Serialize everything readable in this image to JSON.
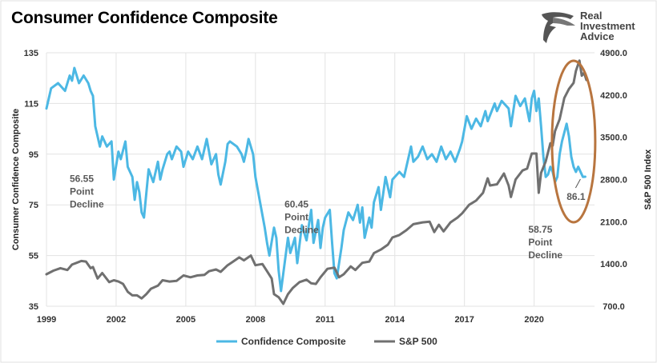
{
  "brand": {
    "line1": "Real",
    "line2": "Investment",
    "line3": "Advice",
    "logo": "eagle-head-logo"
  },
  "colors": {
    "confidence": "#4cb8e4",
    "sp500": "#707070",
    "grid": "#e3e3e3",
    "highlight_ellipse": "#b8753f",
    "annotation_text": "#595959"
  },
  "chart_data": {
    "type": "line",
    "title": "Consumer Confidence Composite",
    "ylabel": "Consumer Confidence Composite",
    "y2label": "S&P 500 Index",
    "xlim": [
      1999,
      2022.6
    ],
    "ylim": [
      35,
      135
    ],
    "y2lim": [
      700,
      4900
    ],
    "x_ticks": [
      "1999",
      "2002",
      "2005",
      "2008",
      "2011",
      "2014",
      "2017",
      "2020"
    ],
    "y_ticks": [
      "35",
      "55",
      "75",
      "95",
      "115",
      "135"
    ],
    "y2_ticks": [
      "700.0",
      "1400.0",
      "2100.0",
      "2800.0",
      "3500.0",
      "4200.0",
      "4900.0"
    ],
    "grid": true,
    "legend_position": "bottom",
    "series": [
      {
        "name": "Confidence Composite",
        "axis": "left",
        "points": [
          [
            1999.0,
            113
          ],
          [
            1999.2,
            121
          ],
          [
            1999.5,
            123
          ],
          [
            1999.8,
            120
          ],
          [
            2000.0,
            126
          ],
          [
            2000.1,
            124
          ],
          [
            2000.2,
            129
          ],
          [
            2000.4,
            123
          ],
          [
            2000.6,
            126
          ],
          [
            2000.8,
            123
          ],
          [
            2000.9,
            120
          ],
          [
            2001.0,
            118
          ],
          [
            2001.1,
            106
          ],
          [
            2001.3,
            98
          ],
          [
            2001.4,
            102
          ],
          [
            2001.6,
            98
          ],
          [
            2001.8,
            100
          ],
          [
            2001.9,
            85
          ],
          [
            2002.1,
            96
          ],
          [
            2002.2,
            93
          ],
          [
            2002.4,
            100
          ],
          [
            2002.5,
            90
          ],
          [
            2002.7,
            86
          ],
          [
            2002.8,
            77
          ],
          [
            2002.9,
            84
          ],
          [
            2003.0,
            80
          ],
          [
            2003.1,
            72
          ],
          [
            2003.2,
            70
          ],
          [
            2003.4,
            89
          ],
          [
            2003.6,
            84
          ],
          [
            2003.8,
            92
          ],
          [
            2003.9,
            85
          ],
          [
            2004.0,
            89
          ],
          [
            2004.2,
            95
          ],
          [
            2004.3,
            96
          ],
          [
            2004.4,
            93
          ],
          [
            2004.6,
            98
          ],
          [
            2004.8,
            96
          ],
          [
            2004.9,
            90
          ],
          [
            2005.1,
            96
          ],
          [
            2005.3,
            93
          ],
          [
            2005.5,
            98
          ],
          [
            2005.7,
            93
          ],
          [
            2005.9,
            101
          ],
          [
            2006.1,
            91
          ],
          [
            2006.3,
            95
          ],
          [
            2006.4,
            87
          ],
          [
            2006.5,
            83
          ],
          [
            2006.7,
            92
          ],
          [
            2006.8,
            99
          ],
          [
            2006.9,
            100
          ],
          [
            2007.2,
            98
          ],
          [
            2007.4,
            95
          ],
          [
            2007.5,
            92
          ],
          [
            2007.6,
            96
          ],
          [
            2007.7,
            101
          ],
          [
            2007.9,
            95
          ],
          [
            2008.0,
            86
          ],
          [
            2008.2,
            76
          ],
          [
            2008.4,
            66
          ],
          [
            2008.5,
            60
          ],
          [
            2008.6,
            55
          ],
          [
            2008.8,
            66
          ],
          [
            2008.9,
            62
          ],
          [
            2009.0,
            49
          ],
          [
            2009.1,
            41
          ],
          [
            2009.2,
            48
          ],
          [
            2009.4,
            62
          ],
          [
            2009.5,
            56
          ],
          [
            2009.7,
            62
          ],
          [
            2009.8,
            52
          ],
          [
            2010.0,
            67
          ],
          [
            2010.2,
            61
          ],
          [
            2010.4,
            73
          ],
          [
            2010.5,
            60
          ],
          [
            2010.7,
            69
          ],
          [
            2010.8,
            58
          ],
          [
            2010.9,
            66
          ],
          [
            2011.0,
            70
          ],
          [
            2011.2,
            73
          ],
          [
            2011.3,
            60
          ],
          [
            2011.4,
            48
          ],
          [
            2011.5,
            46
          ],
          [
            2011.7,
            58
          ],
          [
            2011.8,
            65
          ],
          [
            2012.0,
            72
          ],
          [
            2012.2,
            69
          ],
          [
            2012.4,
            75
          ],
          [
            2012.5,
            68
          ],
          [
            2012.6,
            74
          ],
          [
            2012.7,
            62
          ],
          [
            2012.9,
            70
          ],
          [
            2013.0,
            66
          ],
          [
            2013.1,
            76
          ],
          [
            2013.3,
            82
          ],
          [
            2013.4,
            73
          ],
          [
            2013.6,
            86
          ],
          [
            2013.8,
            78
          ],
          [
            2013.9,
            85
          ],
          [
            2014.2,
            88
          ],
          [
            2014.4,
            86
          ],
          [
            2014.7,
            98
          ],
          [
            2014.8,
            92
          ],
          [
            2015.0,
            94
          ],
          [
            2015.2,
            98
          ],
          [
            2015.4,
            93
          ],
          [
            2015.6,
            95
          ],
          [
            2015.8,
            92
          ],
          [
            2016.0,
            98
          ],
          [
            2016.2,
            93
          ],
          [
            2016.4,
            96
          ],
          [
            2016.6,
            92
          ],
          [
            2016.8,
            97
          ],
          [
            2016.9,
            100
          ],
          [
            2017.1,
            110
          ],
          [
            2017.3,
            105
          ],
          [
            2017.5,
            109
          ],
          [
            2017.7,
            106
          ],
          [
            2017.9,
            112
          ],
          [
            2018.0,
            108
          ],
          [
            2018.3,
            115
          ],
          [
            2018.4,
            112
          ],
          [
            2018.6,
            116
          ],
          [
            2018.9,
            113
          ],
          [
            2019.0,
            106
          ],
          [
            2019.2,
            118
          ],
          [
            2019.4,
            114
          ],
          [
            2019.6,
            117
          ],
          [
            2019.8,
            108
          ],
          [
            2019.9,
            117
          ],
          [
            2020.0,
            120
          ],
          [
            2020.1,
            112
          ],
          [
            2020.2,
            117
          ],
          [
            2020.3,
            106
          ],
          [
            2020.4,
            94
          ],
          [
            2020.5,
            86
          ],
          [
            2020.6,
            87
          ],
          [
            2020.7,
            90
          ],
          [
            2020.8,
            88
          ],
          [
            2020.9,
            84
          ],
          [
            2021.0,
            86
          ],
          [
            2021.1,
            95
          ],
          [
            2021.2,
            100
          ],
          [
            2021.4,
            107
          ],
          [
            2021.5,
            102
          ],
          [
            2021.6,
            94
          ],
          [
            2021.7,
            90
          ],
          [
            2021.8,
            88
          ],
          [
            2021.9,
            90
          ],
          [
            2022.0,
            88
          ],
          [
            2022.1,
            86
          ],
          [
            2022.2,
            86.1
          ]
        ]
      },
      {
        "name": "S&P 500",
        "axis": "right",
        "points": [
          [
            1999.0,
            1230
          ],
          [
            1999.3,
            1290
          ],
          [
            1999.6,
            1330
          ],
          [
            1999.9,
            1300
          ],
          [
            2000.1,
            1390
          ],
          [
            2000.3,
            1420
          ],
          [
            2000.5,
            1450
          ],
          [
            2000.7,
            1440
          ],
          [
            2000.9,
            1330
          ],
          [
            2001.0,
            1350
          ],
          [
            2001.2,
            1160
          ],
          [
            2001.4,
            1250
          ],
          [
            2001.7,
            1100
          ],
          [
            2001.9,
            1130
          ],
          [
            2002.1,
            1110
          ],
          [
            2002.3,
            1070
          ],
          [
            2002.5,
            940
          ],
          [
            2002.7,
            880
          ],
          [
            2002.9,
            880
          ],
          [
            2003.1,
            830
          ],
          [
            2003.3,
            900
          ],
          [
            2003.5,
            990
          ],
          [
            2003.8,
            1040
          ],
          [
            2004.0,
            1130
          ],
          [
            2004.3,
            1110
          ],
          [
            2004.6,
            1120
          ],
          [
            2004.9,
            1210
          ],
          [
            2005.2,
            1180
          ],
          [
            2005.5,
            1210
          ],
          [
            2005.8,
            1220
          ],
          [
            2006.0,
            1280
          ],
          [
            2006.3,
            1310
          ],
          [
            2006.5,
            1270
          ],
          [
            2006.8,
            1380
          ],
          [
            2007.0,
            1430
          ],
          [
            2007.3,
            1510
          ],
          [
            2007.5,
            1460
          ],
          [
            2007.8,
            1540
          ],
          [
            2008.0,
            1380
          ],
          [
            2008.3,
            1400
          ],
          [
            2008.5,
            1280
          ],
          [
            2008.7,
            1160
          ],
          [
            2008.8,
            900
          ],
          [
            2009.0,
            850
          ],
          [
            2009.2,
            740
          ],
          [
            2009.4,
            900
          ],
          [
            2009.6,
            1000
          ],
          [
            2009.9,
            1100
          ],
          [
            2010.2,
            1140
          ],
          [
            2010.4,
            1080
          ],
          [
            2010.6,
            1070
          ],
          [
            2010.8,
            1180
          ],
          [
            2011.1,
            1320
          ],
          [
            2011.4,
            1340
          ],
          [
            2011.6,
            1180
          ],
          [
            2011.8,
            1230
          ],
          [
            2012.1,
            1360
          ],
          [
            2012.3,
            1300
          ],
          [
            2012.6,
            1420
          ],
          [
            2012.9,
            1440
          ],
          [
            2013.1,
            1580
          ],
          [
            2013.4,
            1640
          ],
          [
            2013.7,
            1720
          ],
          [
            2013.9,
            1840
          ],
          [
            2014.2,
            1880
          ],
          [
            2014.5,
            1960
          ],
          [
            2014.8,
            2060
          ],
          [
            2015.2,
            2090
          ],
          [
            2015.5,
            2100
          ],
          [
            2015.7,
            1930
          ],
          [
            2015.9,
            2050
          ],
          [
            2016.1,
            1940
          ],
          [
            2016.4,
            2090
          ],
          [
            2016.7,
            2170
          ],
          [
            2016.9,
            2240
          ],
          [
            2017.2,
            2380
          ],
          [
            2017.5,
            2450
          ],
          [
            2017.8,
            2580
          ],
          [
            2018.0,
            2820
          ],
          [
            2018.1,
            2700
          ],
          [
            2018.4,
            2720
          ],
          [
            2018.7,
            2900
          ],
          [
            2018.9,
            2700
          ],
          [
            2019.0,
            2510
          ],
          [
            2019.2,
            2800
          ],
          [
            2019.5,
            2950
          ],
          [
            2019.7,
            2980
          ],
          [
            2019.9,
            3230
          ],
          [
            2020.1,
            3230
          ],
          [
            2020.2,
            2580
          ],
          [
            2020.3,
            2910
          ],
          [
            2020.5,
            3100
          ],
          [
            2020.7,
            3400
          ],
          [
            2020.8,
            3360
          ],
          [
            2020.9,
            3600
          ],
          [
            2021.1,
            3800
          ],
          [
            2021.3,
            4150
          ],
          [
            2021.5,
            4300
          ],
          [
            2021.7,
            4400
          ],
          [
            2021.8,
            4600
          ],
          [
            2021.95,
            4770
          ],
          [
            2022.05,
            4520
          ],
          [
            2022.15,
            4570
          ],
          [
            2022.25,
            4450
          ]
        ]
      }
    ],
    "annotations": [
      {
        "lines": [
          "56.55",
          "Point",
          "Decline"
        ],
        "at": [
          2000.0,
          84
        ]
      },
      {
        "lines": [
          "60.45",
          "Point",
          "Decline"
        ],
        "at": [
          2009.25,
          74
        ]
      },
      {
        "lines": [
          "58.75",
          "Point",
          "Decline"
        ],
        "at": [
          2019.75,
          64
        ]
      },
      {
        "lines": [
          "86.1"
        ],
        "at": [
          2021.4,
          77
        ]
      }
    ]
  }
}
